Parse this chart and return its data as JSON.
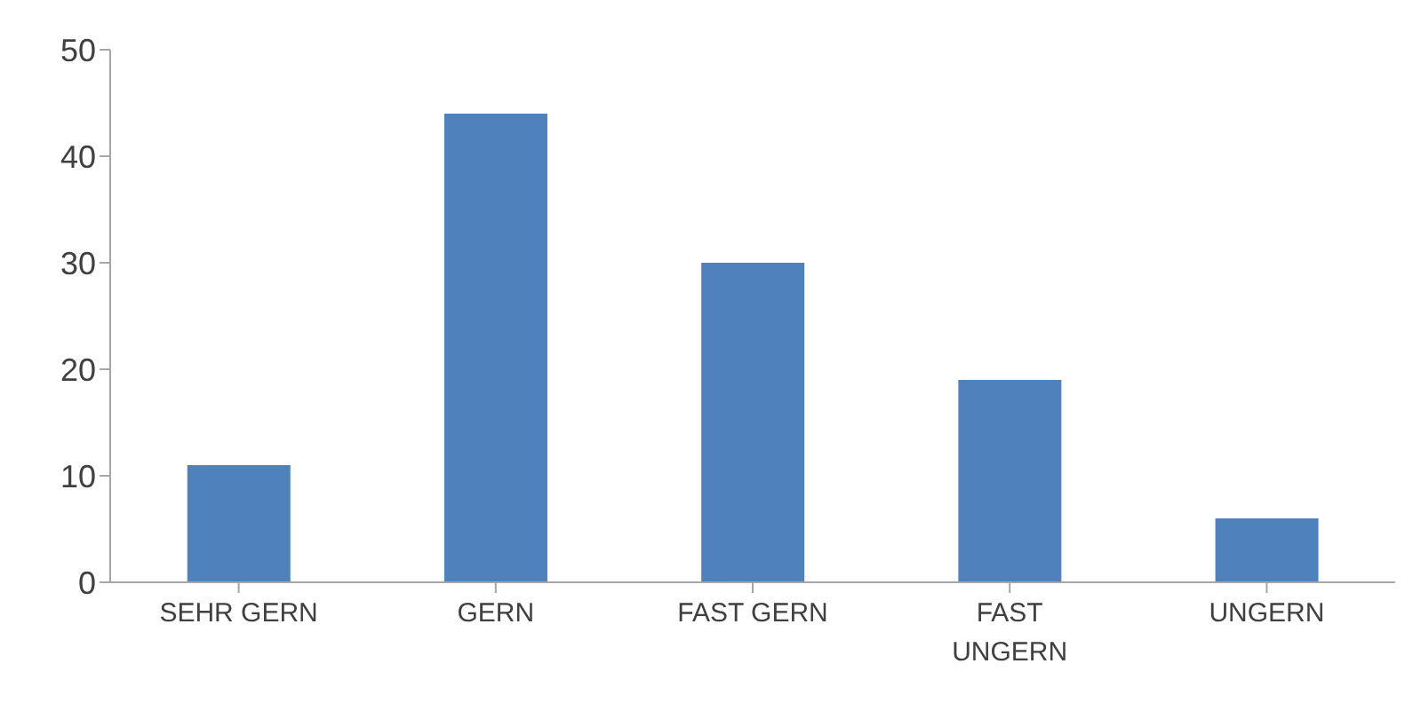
{
  "chart_data": {
    "type": "bar",
    "categories": [
      "SEHR GERN",
      "GERN",
      "FAST GERN",
      "FAST UNGERN",
      "UNGERN"
    ],
    "values": [
      11,
      44,
      30,
      19,
      6
    ],
    "color": "#4f81bd",
    "ylim": [
      0,
      50
    ],
    "yticks": [
      0,
      10,
      20,
      30,
      40,
      50
    ]
  }
}
